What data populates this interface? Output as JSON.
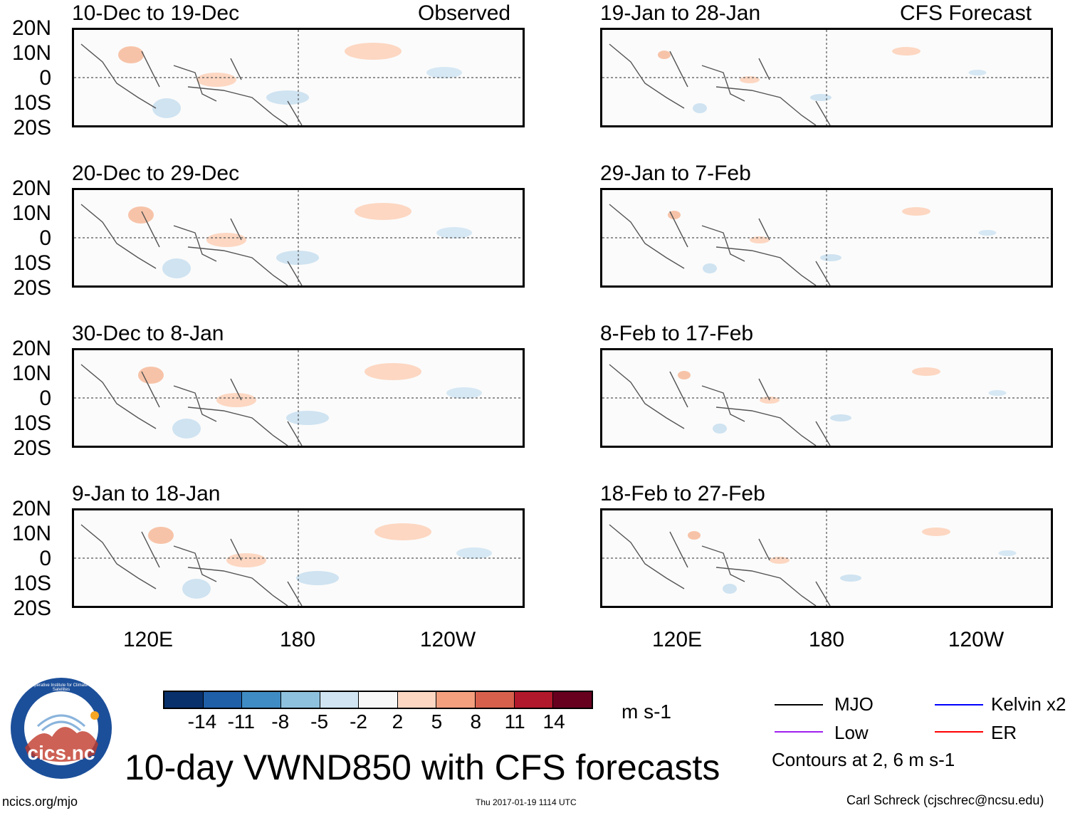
{
  "panels": [
    {
      "title": "10-Dec to 19-Dec",
      "tag": "Observed"
    },
    {
      "title": "19-Jan to 28-Jan",
      "tag": "CFS Forecast"
    },
    {
      "title": "20-Dec to 29-Dec",
      "tag": ""
    },
    {
      "title": "29-Jan to 7-Feb",
      "tag": ""
    },
    {
      "title": "30-Dec to 8-Jan",
      "tag": ""
    },
    {
      "title": "8-Feb to 17-Feb",
      "tag": ""
    },
    {
      "title": "9-Jan to 18-Jan",
      "tag": ""
    },
    {
      "title": "18-Feb to 27-Feb",
      "tag": ""
    }
  ],
  "lat_labels": [
    "20N",
    "10N",
    "0",
    "10S",
    "20S"
  ],
  "lon_labels": [
    "120E",
    "180",
    "120W"
  ],
  "colorbar": {
    "colors": [
      "#08306b",
      "#1f5fa8",
      "#3f8cc4",
      "#8ec1de",
      "#d0e4f1",
      "#f7f7f7",
      "#fdd7c2",
      "#f4a07f",
      "#d7604d",
      "#b2182b",
      "#67001f"
    ],
    "ticks": [
      "-14",
      "-11",
      "-8",
      "-5",
      "-2",
      "2",
      "5",
      "8",
      "11",
      "14"
    ],
    "units": "m s-1"
  },
  "legend": {
    "items": [
      {
        "label": "MJO",
        "color": "#000000"
      },
      {
        "label": "Kelvin x2",
        "color": "#0000ff"
      },
      {
        "label": "Low",
        "color": "#a020f0"
      },
      {
        "label": "ER",
        "color": "#ff0000"
      }
    ],
    "note": "Contours at 2, 6 m s-1"
  },
  "main_title": "10-day VWND850 with CFS forecasts",
  "logo_text": "cics.nc",
  "logo_ring_text": "Cooperative Institute for Climate and Satellites",
  "footer": {
    "left": "ncics.org/mjo",
    "center": "Thu 2017-01-19 1114 UTC",
    "right": "Carl Schreck (cjschrec@ncsu.edu)"
  }
}
